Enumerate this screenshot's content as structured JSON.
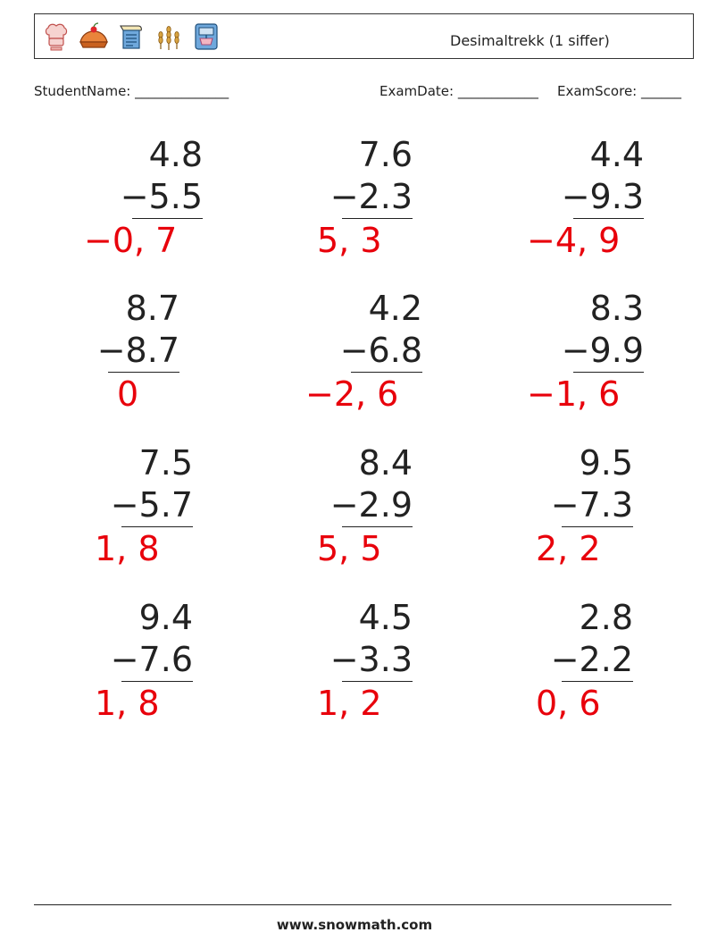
{
  "header": {
    "title": "Desimaltrekk (1 siffer)",
    "icons": [
      "chef-hat-icon",
      "pie-icon",
      "recipe-scroll-icon",
      "wheat-icon",
      "mixer-icon"
    ]
  },
  "info": {
    "student_name": "StudentName: ______________",
    "exam_date": "ExamDate: ____________",
    "exam_score": "ExamScore: ______"
  },
  "problems": [
    {
      "top": "4.8",
      "bottom": "−5.5",
      "answer": "−0, 7"
    },
    {
      "top": "7.6",
      "bottom": "−2.3",
      "answer": "5, 3"
    },
    {
      "top": "4.4",
      "bottom": "−9.3",
      "answer": "−4, 9"
    },
    {
      "top": "8.7",
      "bottom": "−8.7",
      "answer": "0"
    },
    {
      "top": "4.2",
      "bottom": "−6.8",
      "answer": "−2, 6"
    },
    {
      "top": "8.3",
      "bottom": "−9.9",
      "answer": "−1, 6"
    },
    {
      "top": "7.5",
      "bottom": "−5.7",
      "answer": "1, 8"
    },
    {
      "top": "8.4",
      "bottom": "−2.9",
      "answer": "5, 5"
    },
    {
      "top": "9.5",
      "bottom": "−7.3",
      "answer": "2, 2"
    },
    {
      "top": "9.4",
      "bottom": "−7.6",
      "answer": "1, 8"
    },
    {
      "top": "4.5",
      "bottom": "−3.3",
      "answer": "1, 2"
    },
    {
      "top": "2.8",
      "bottom": "−2.2",
      "answer": "0, 6"
    }
  ],
  "footer": {
    "site": "www.snowmath.com"
  },
  "colors": {
    "answer": "#e8000b",
    "text": "#222222"
  }
}
